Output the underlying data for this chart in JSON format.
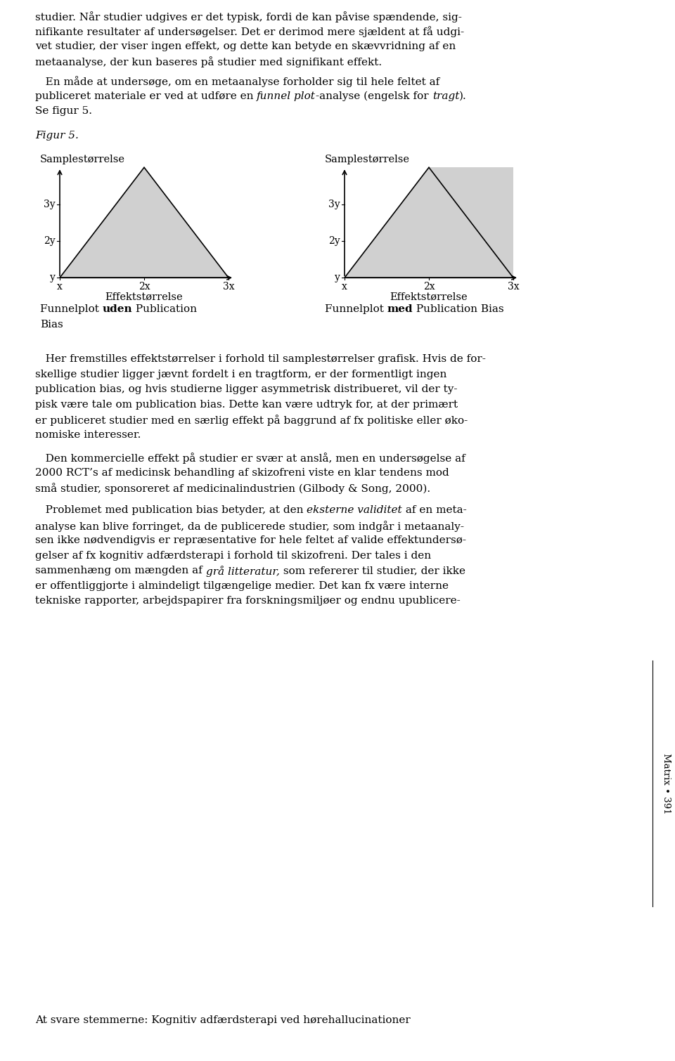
{
  "background_color": "#ffffff",
  "text_color": "#000000",
  "page_width": 9.6,
  "page_height": 15.1,
  "top_text_blocks": [
    "studier. Når studier udgives er det typisk, fordi de kan påvise spændende, sig-",
    "nifikante resultater af undersøgelser. Det er derimod mere sjældent at få udgi-",
    "vet studier, der viser ingen effekt, og dette kan betyde en skævvridning af en",
    "metaanalyse, der kun baseres på studier med signifikant effekt."
  ],
  "indent_text": "   En måde at undersøge, om en metaanalyse forholder sig til hele feltet af",
  "line2_pre_italic": "publiceret materiale er ved at udføre en ",
  "line2_italic1": "funnel plot",
  "line2_mid": "-analyse (engelsk for ",
  "line2_italic2": "tragt",
  "line2_end": ").",
  "indent_text3": "Se figur 5.",
  "figur_label": "Figur 5.",
  "plot1_title": "Samplestørrelse",
  "plot2_title": "Samplestørrelse",
  "plot1_xlabel": "Effektstørrelse",
  "plot2_xlabel": "Effektstørrelse",
  "yticks": [
    "y",
    "2y",
    "3y"
  ],
  "xticks": [
    "x",
    "2x",
    "3x"
  ],
  "triangle_fill": "#d0d0d0",
  "gray_rect_fill": "#d0d0d0",
  "cap1_pre": "Funnelplot ",
  "cap1_bold": "uden",
  "cap1_post": " Publication",
  "cap1_line2": "Bias",
  "cap2_pre": "Funnelplot ",
  "cap2_bold": "med",
  "cap2_post": " Publication Bias",
  "body_para1": [
    "   Her fremstilles effektstørrelser i forhold til samplestørrelser grafisk. Hvis de for-",
    "skellige studier ligger jævnt fordelt i en tragtform, er der formentligt ingen",
    "publication bias, og hvis studierne ligger asymmetrisk distribueret, vil der ty-",
    "pisk være tale om publication bias. Dette kan være udtryk for, at der primært",
    "er publiceret studier med en særlig effekt på baggrund af fx politiske eller øko-",
    "nomiske interesser."
  ],
  "body_para2": [
    "   Den kommercielle effekt på studier er svær at anslå, men en undersøgelse af",
    "2000 RCT’s af medicinsk behandling af skizofreni viste en klar tendens mod",
    "små studier, sponsoreret af medicinalindustrien (Gilbody & Song, 2000)."
  ],
  "p3_pre": "   Problemet med publication bias betyder, at den ",
  "p3_italic": "eksterne validitet",
  "p3_post": " af en meta-",
  "p3_lines": [
    "analyse kan blive forringet, da de publicerede studier, som indgår i metaanaly-",
    "sen ikke nødvendigvis er repræsentative for hele feltet af valide effektundersø-",
    "gelser af fx kognitiv adfærdsterapi i forhold til skizofreni. Der tales i den",
    "sammenhæng om mængden af grå litteratur, som refererer til studier, der ikke",
    "er offentliggjorte i almindeligt tilgængelige medier. Det kan fx være interne",
    "tekniske rapporter, arbejdspapirer fra forskningsmiljøer og endnu upublicere-"
  ],
  "p3_italic2": "grå litteratur,",
  "sidebar_text": "Matrix • 391",
  "bottom_text": "At svare stemmerne: Kognitiv adfærdsterapi ved hørehallucinationer",
  "font_size_body": 11.0,
  "font_size_plot": 10.5,
  "font_size_tick": 10.0,
  "font_size_sidebar": 9.5
}
